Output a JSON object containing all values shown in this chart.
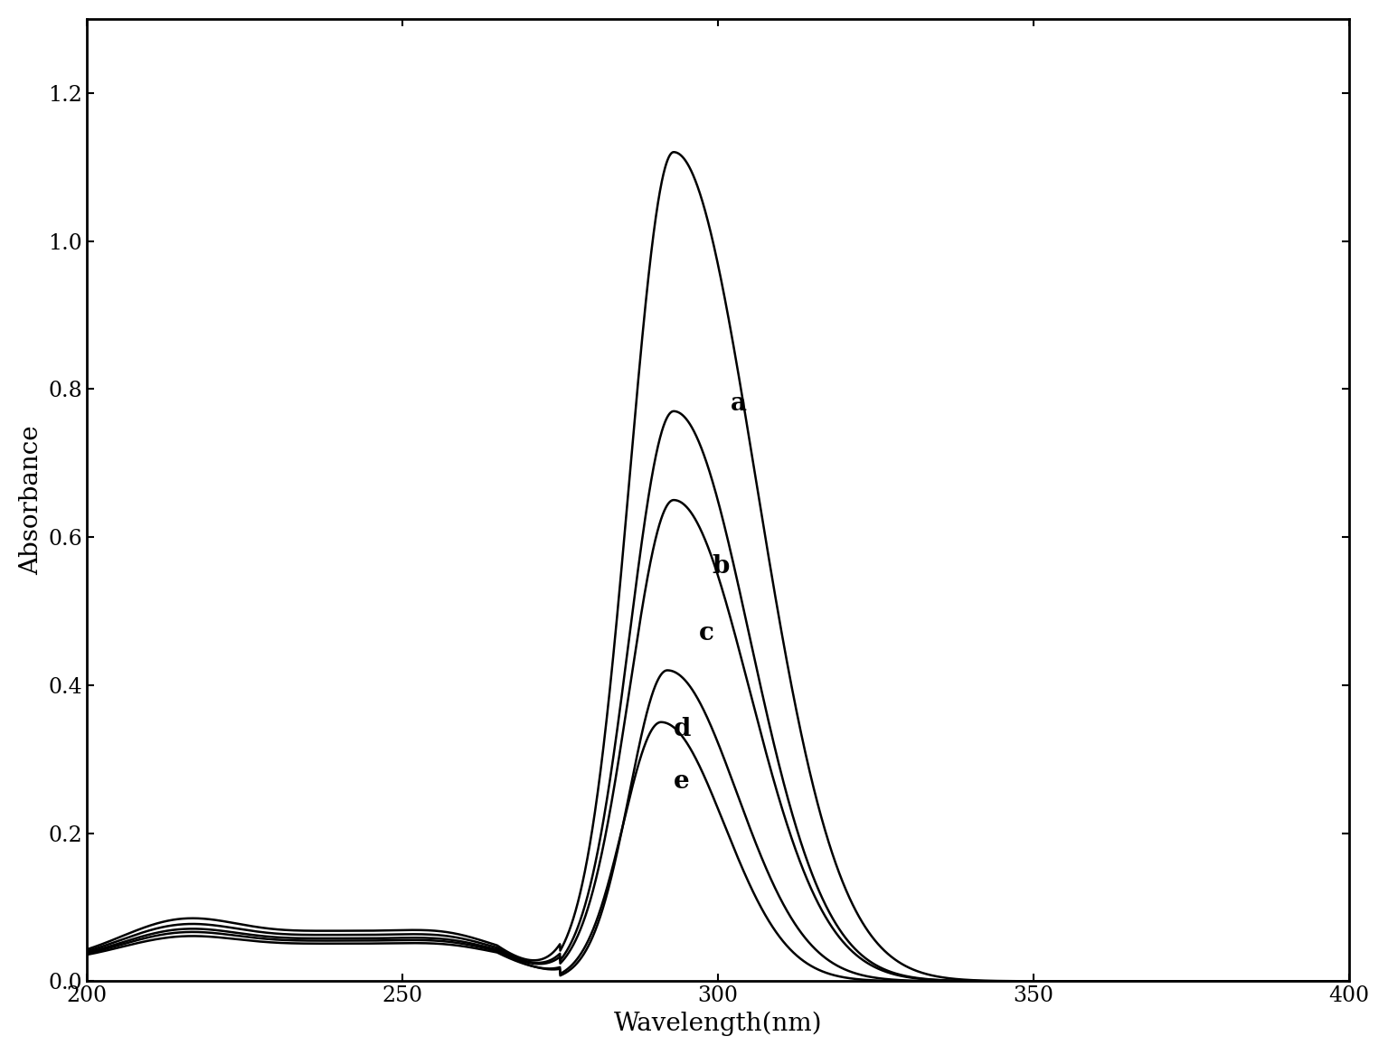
{
  "title": "",
  "xlabel": "Wavelength(nm)",
  "ylabel": "Absorbance",
  "xlim": [
    200,
    400
  ],
  "ylim": [
    0.0,
    1.3
  ],
  "xticks": [
    200,
    250,
    300,
    350,
    400
  ],
  "yticks": [
    0.0,
    0.2,
    0.4,
    0.6,
    0.8,
    1.0,
    1.2
  ],
  "series_labels": [
    "a",
    "b",
    "c",
    "d",
    "e"
  ],
  "peak_wavelengths": [
    293,
    293,
    293,
    292,
    291
  ],
  "peak_absorbances": [
    1.12,
    0.77,
    0.65,
    0.42,
    0.35
  ],
  "sigma_lefts": [
    7,
    7,
    7,
    6,
    6
  ],
  "sigma_rights": [
    13,
    12,
    12,
    11,
    10
  ],
  "baseline_amps": [
    0.055,
    0.048,
    0.042,
    0.038,
    0.033
  ],
  "label_wavelengths": [
    302,
    299,
    297,
    293,
    293
  ],
  "label_absorbances": [
    0.78,
    0.56,
    0.47,
    0.34,
    0.27
  ],
  "line_color": "#000000",
  "background_color": "#ffffff",
  "fontsize_label": 20,
  "fontsize_tick": 17,
  "fontsize_annotation": 20,
  "linewidth": 1.8
}
